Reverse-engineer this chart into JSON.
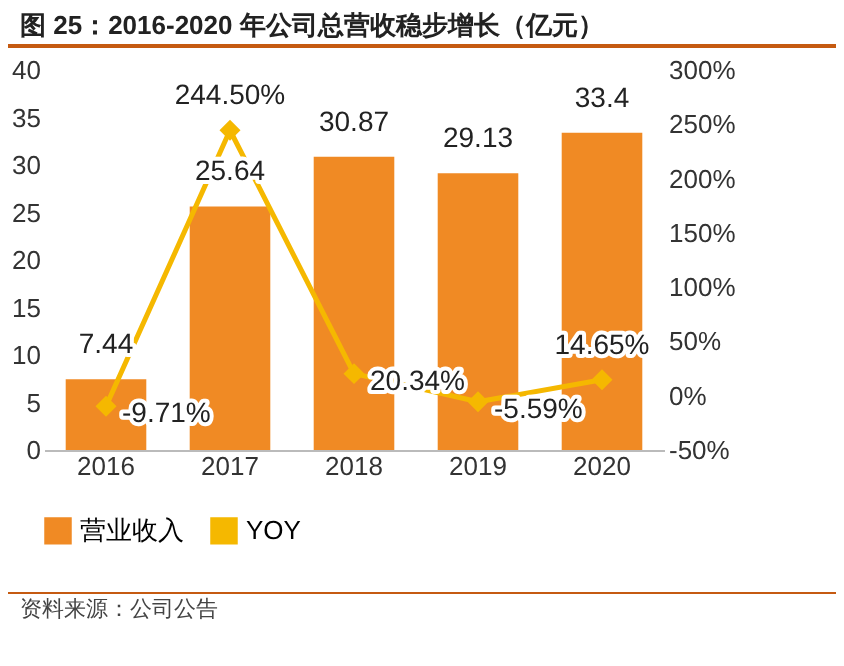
{
  "chart_data": {
    "type": "bar",
    "title": "图 25：2016-2020 年公司总营收稳步增长（亿元）",
    "annotations": [
      "资料来源：公司公告"
    ],
    "categories": [
      "2016",
      "2017",
      "2018",
      "2019",
      "2020"
    ],
    "series": [
      {
        "name": "营业收入",
        "color": "#f08a24",
        "values": [
          7.44,
          25.64,
          30.87,
          29.13,
          33.4
        ],
        "value_labels": [
          "7.44",
          "25.64",
          "30.87",
          "29.13",
          "33.4"
        ]
      },
      {
        "name": "YOY",
        "type": "line",
        "axis": "y2",
        "color": "#f5b800",
        "values": [
          -9.71,
          244.5,
          20.34,
          -5.59,
          14.65
        ],
        "value_labels": [
          "-9.71%",
          "244.50%",
          "20.34%",
          "-5.59%",
          "14.65%"
        ]
      }
    ],
    "ylim": [
      0,
      40
    ],
    "yticks": [
      0,
      5,
      10,
      15,
      20,
      25,
      30,
      35,
      40
    ],
    "y2lim": [
      -50,
      300
    ],
    "y2ticks": [
      {
        "value": -50,
        "label": "-50%"
      },
      {
        "value": 0,
        "label": "0%"
      },
      {
        "value": 50,
        "label": "50%"
      },
      {
        "value": 100,
        "label": "100%"
      },
      {
        "value": 150,
        "label": "150%"
      },
      {
        "value": 200,
        "label": "200%"
      },
      {
        "value": 250,
        "label": "250%"
      },
      {
        "value": 300,
        "label": "300%"
      }
    ],
    "legend": "bottom",
    "marker": "diamond"
  }
}
